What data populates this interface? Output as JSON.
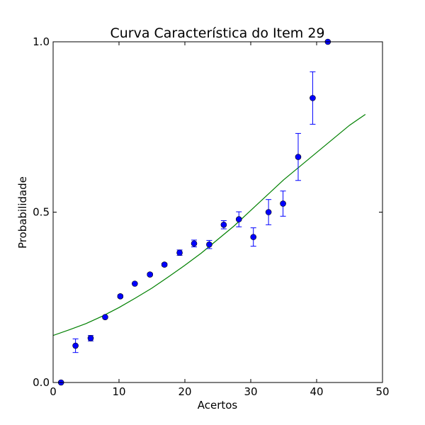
{
  "chart_data": {
    "type": "scatter",
    "title": "Curva Característica do Item 29",
    "xlabel": "Acertos",
    "ylabel": "Probabilidade",
    "xlim": [
      0,
      50
    ],
    "ylim": [
      0,
      1
    ],
    "xticks": [
      0,
      10,
      20,
      30,
      40,
      50
    ],
    "xtick_labels": [
      "0",
      "10",
      "20",
      "30",
      "40",
      "50"
    ],
    "yticks": [
      0,
      0.5,
      1
    ],
    "ytick_labels": [
      "0.0",
      "0.5",
      "1.0"
    ],
    "grid": false,
    "colors": {
      "points": "#0000ff",
      "curve": "#008000"
    },
    "points": [
      {
        "x": 1.2,
        "y": 0.0,
        "err": 0.0
      },
      {
        "x": 3.4,
        "y": 0.108,
        "err": 0.02
      },
      {
        "x": 5.7,
        "y": 0.13,
        "err": 0.008
      },
      {
        "x": 7.9,
        "y": 0.192,
        "err": 0.0
      },
      {
        "x": 10.2,
        "y": 0.253,
        "err": 0.004
      },
      {
        "x": 12.4,
        "y": 0.29,
        "err": 0.0
      },
      {
        "x": 14.7,
        "y": 0.317,
        "err": 0.004
      },
      {
        "x": 16.9,
        "y": 0.346,
        "err": 0.004
      },
      {
        "x": 19.2,
        "y": 0.381,
        "err": 0.008
      },
      {
        "x": 21.4,
        "y": 0.408,
        "err": 0.01
      },
      {
        "x": 23.7,
        "y": 0.405,
        "err": 0.012
      },
      {
        "x": 25.9,
        "y": 0.463,
        "err": 0.012
      },
      {
        "x": 28.2,
        "y": 0.479,
        "err": 0.022
      },
      {
        "x": 30.4,
        "y": 0.427,
        "err": 0.027
      },
      {
        "x": 32.7,
        "y": 0.5,
        "err": 0.037
      },
      {
        "x": 34.9,
        "y": 0.525,
        "err": 0.037
      },
      {
        "x": 37.2,
        "y": 0.662,
        "err": 0.069
      },
      {
        "x": 39.4,
        "y": 0.835,
        "err": 0.077
      },
      {
        "x": 41.7,
        "y": 1.0,
        "err": 0.0
      }
    ],
    "curve": {
      "x": [
        0,
        2.5,
        5,
        7.5,
        10,
        12.5,
        15,
        17.5,
        20,
        22.5,
        25,
        27.5,
        30,
        32.5,
        35,
        37.5,
        40,
        42.5,
        45,
        47.4
      ],
      "y": [
        0.138,
        0.155,
        0.173,
        0.195,
        0.22,
        0.248,
        0.277,
        0.31,
        0.344,
        0.38,
        0.42,
        0.46,
        0.505,
        0.55,
        0.595,
        0.635,
        0.675,
        0.715,
        0.755,
        0.787
      ]
    }
  }
}
